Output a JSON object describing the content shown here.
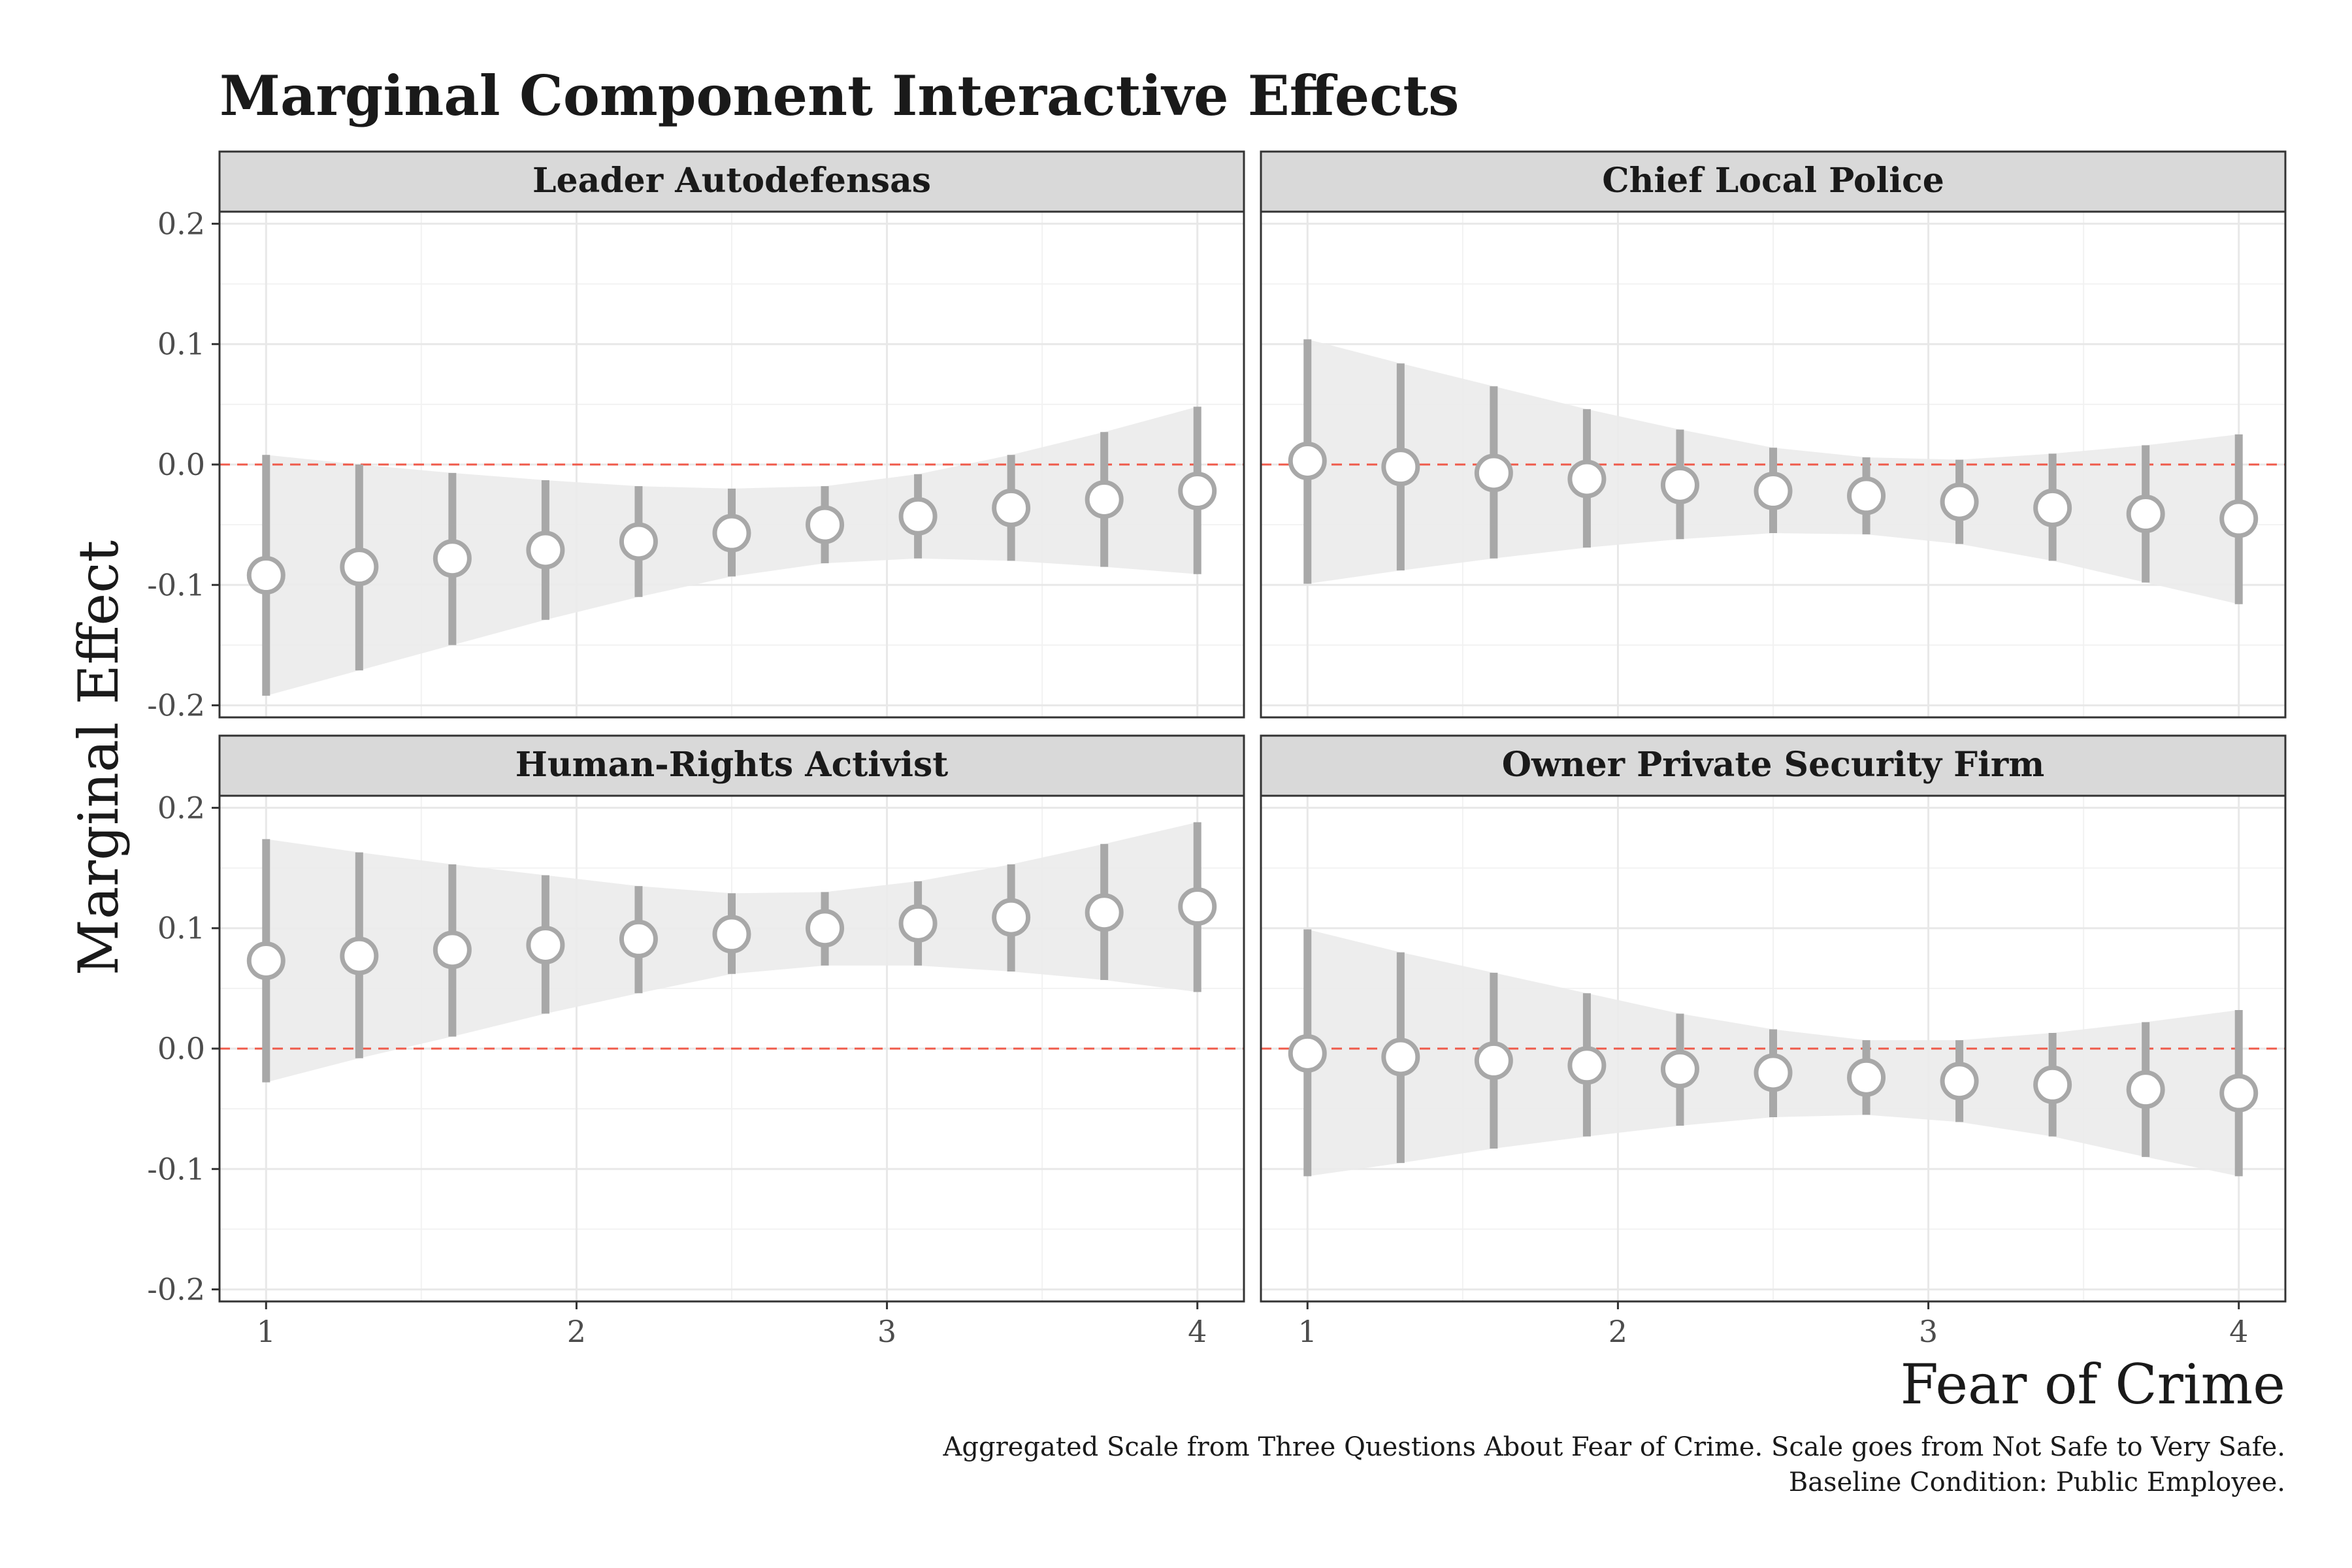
{
  "chart_data": {
    "type": "scatter",
    "title": "Marginal Component Interactive Effects",
    "xlabel": "Fear of Crime",
    "ylabel": "Marginal Effect",
    "caption_lines": [
      "Aggregated Scale from Three Questions About Fear of Crime. Scale goes from Not Safe to Very Safe.",
      "Baseline Condition: Public Employee."
    ],
    "xlim": [
      0.85,
      4.15
    ],
    "ylim": [
      -0.21,
      0.21
    ],
    "x_ticks": [
      1,
      2,
      3,
      4
    ],
    "y_ticks": [
      0.2,
      0.1,
      0.0,
      -0.1,
      -0.2
    ],
    "y_tick_labels": [
      "0.2",
      "0.1",
      "0.0",
      "-0.1",
      "-0.2"
    ],
    "reference_line": 0,
    "grid": true,
    "colors": {
      "point": "#a8a8a8",
      "band": "#ebebeb",
      "reference": "#ef5a4a",
      "strip": "#d9d9d9"
    },
    "x": [
      1.0,
      1.3,
      1.6,
      1.9,
      2.2,
      2.5,
      2.8,
      3.1,
      3.4,
      3.7,
      4.0
    ],
    "panels": [
      {
        "name": "Leader Autodefensas",
        "estimate": [
          -0.092,
          -0.085,
          -0.078,
          -0.071,
          -0.064,
          -0.057,
          -0.05,
          -0.043,
          -0.036,
          -0.029,
          -0.022
        ],
        "lower": [
          -0.192,
          -0.171,
          -0.15,
          -0.129,
          -0.11,
          -0.093,
          -0.082,
          -0.078,
          -0.08,
          -0.085,
          -0.091
        ],
        "upper": [
          0.008,
          0.0,
          -0.007,
          -0.013,
          -0.018,
          -0.02,
          -0.018,
          -0.008,
          0.008,
          0.027,
          0.048
        ]
      },
      {
        "name": "Chief Local Police",
        "estimate": [
          0.003,
          -0.002,
          -0.007,
          -0.012,
          -0.017,
          -0.022,
          -0.026,
          -0.031,
          -0.036,
          -0.041,
          -0.045
        ],
        "lower": [
          -0.099,
          -0.088,
          -0.078,
          -0.069,
          -0.062,
          -0.057,
          -0.058,
          -0.066,
          -0.08,
          -0.098,
          -0.116
        ],
        "upper": [
          0.104,
          0.084,
          0.065,
          0.046,
          0.029,
          0.014,
          0.006,
          0.004,
          0.009,
          0.016,
          0.025
        ]
      },
      {
        "name": "Human-Rights Activist",
        "estimate": [
          0.073,
          0.077,
          0.082,
          0.086,
          0.091,
          0.095,
          0.1,
          0.104,
          0.109,
          0.113,
          0.118
        ],
        "lower": [
          -0.028,
          -0.008,
          0.01,
          0.029,
          0.046,
          0.062,
          0.069,
          0.069,
          0.064,
          0.057,
          0.047
        ],
        "upper": [
          0.174,
          0.163,
          0.153,
          0.144,
          0.135,
          0.129,
          0.13,
          0.139,
          0.153,
          0.17,
          0.188
        ]
      },
      {
        "name": "Owner Private Security Firm",
        "estimate": [
          -0.004,
          -0.007,
          -0.01,
          -0.014,
          -0.017,
          -0.02,
          -0.024,
          -0.027,
          -0.03,
          -0.034,
          -0.037
        ],
        "lower": [
          -0.106,
          -0.095,
          -0.083,
          -0.073,
          -0.064,
          -0.057,
          -0.055,
          -0.061,
          -0.073,
          -0.09,
          -0.106
        ],
        "upper": [
          0.099,
          0.08,
          0.063,
          0.046,
          0.029,
          0.016,
          0.007,
          0.007,
          0.013,
          0.022,
          0.032
        ]
      }
    ]
  }
}
